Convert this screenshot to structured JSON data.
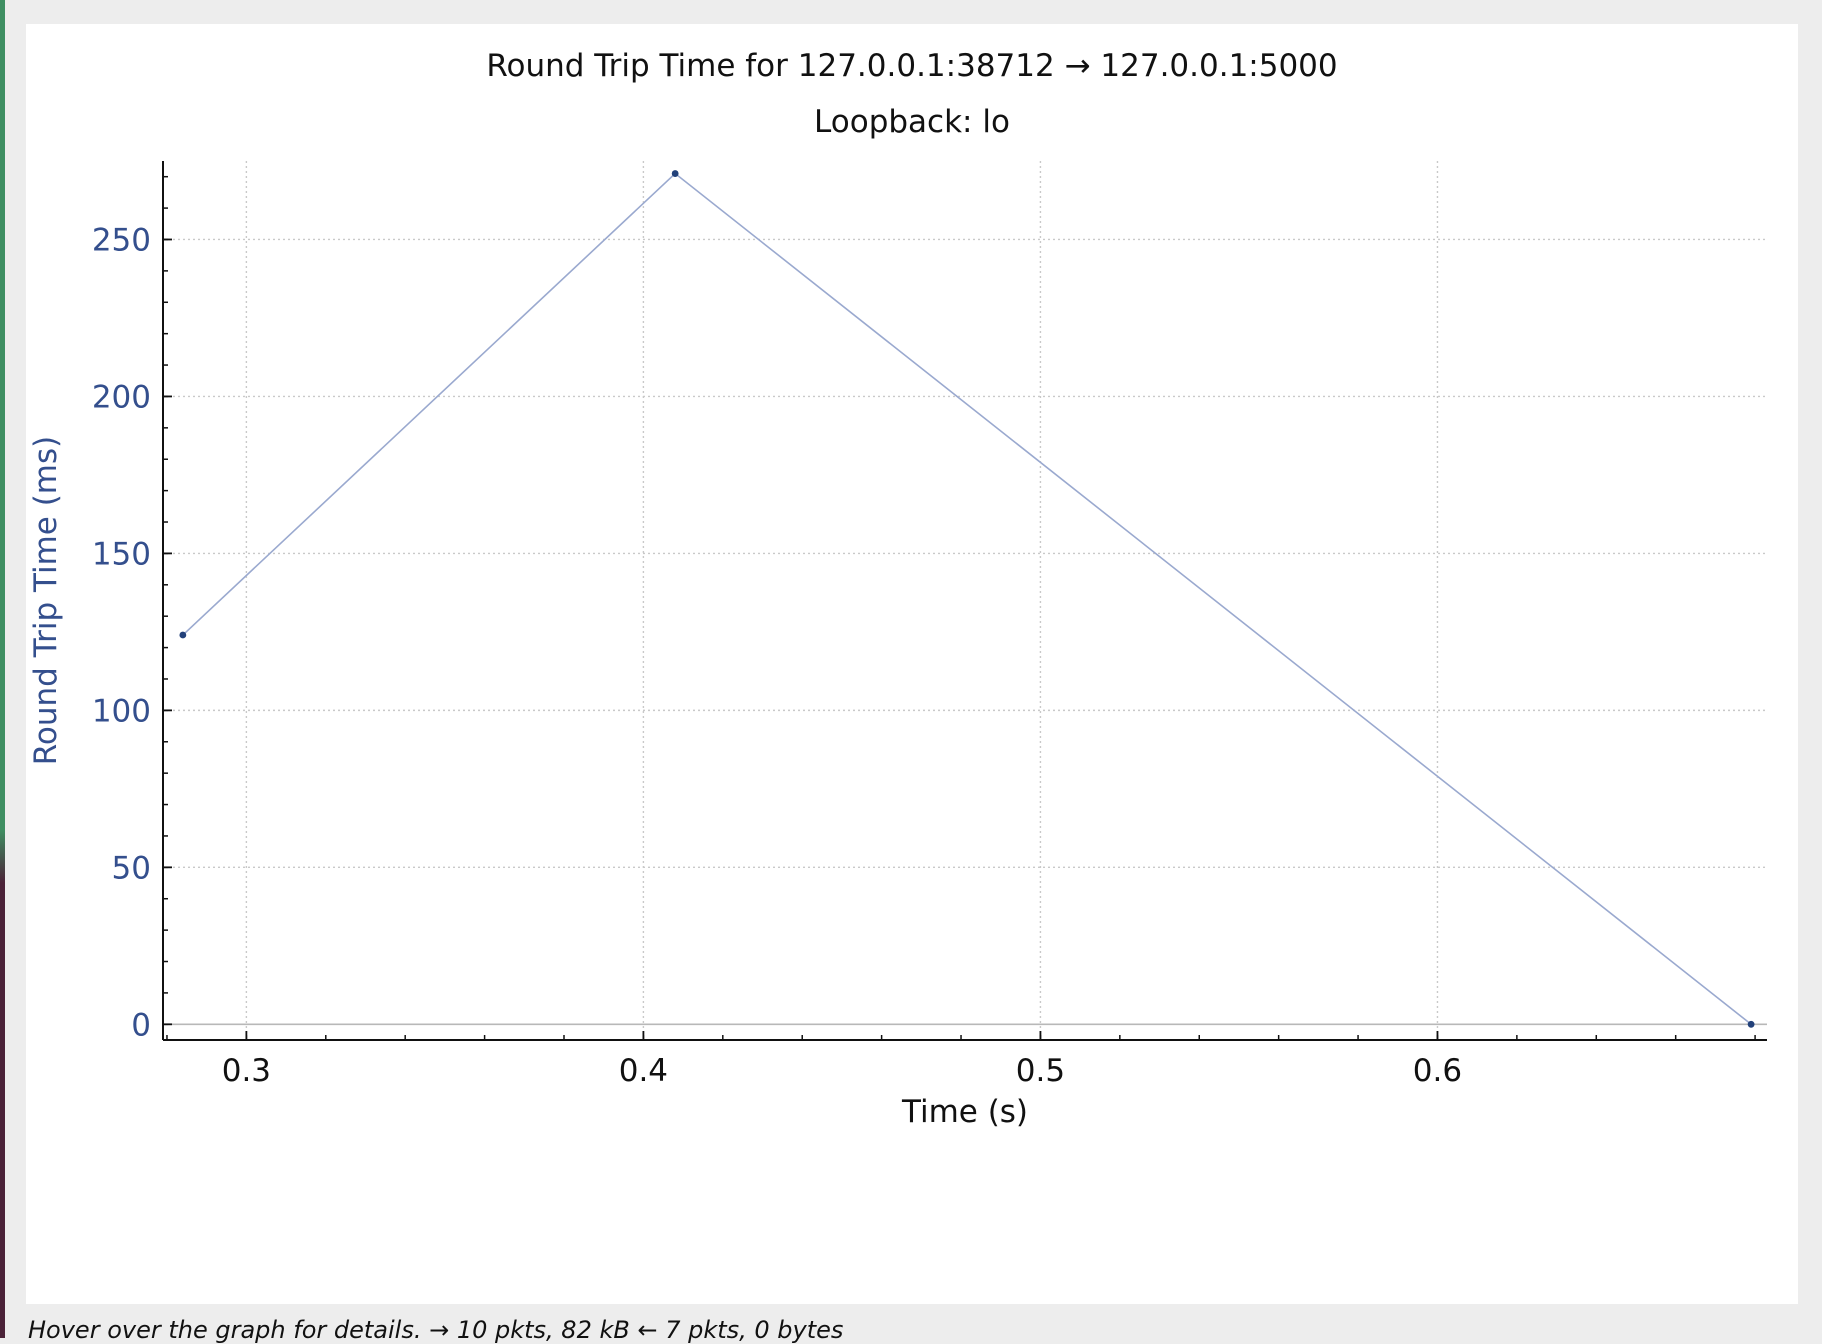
{
  "status_bar": {
    "text": "Hover over the graph for details. → 10 pkts, 82 kB ← 7 pkts, 0 bytes"
  },
  "colors": {
    "series": "#9aa9cf",
    "marker": "#22417a",
    "axis_text": "#344f8d",
    "grid": "#c9c9c9"
  },
  "chart_data": {
    "type": "line",
    "title": "Round Trip Time for 127.0.0.1:38712 → 127.0.0.1:5000",
    "subtitle": "Loopback: lo",
    "xlabel": "Time (s)",
    "ylabel": "Round Trip Time (ms)",
    "xlim": [
      0.279,
      0.683
    ],
    "ylim": [
      -5,
      275
    ],
    "x_ticks": [
      0.3,
      0.4,
      0.5,
      0.6
    ],
    "x_tick_labels": [
      "0.3",
      "0.4",
      "0.5",
      "0.6"
    ],
    "y_ticks": [
      0,
      50,
      100,
      150,
      200,
      250
    ],
    "y_tick_labels": [
      "0",
      "50",
      "100",
      "150",
      "200",
      "250"
    ],
    "grid": true,
    "series": [
      {
        "x": [
          0.284,
          0.408,
          0.679
        ],
        "y": [
          124,
          271,
          0
        ]
      }
    ]
  }
}
